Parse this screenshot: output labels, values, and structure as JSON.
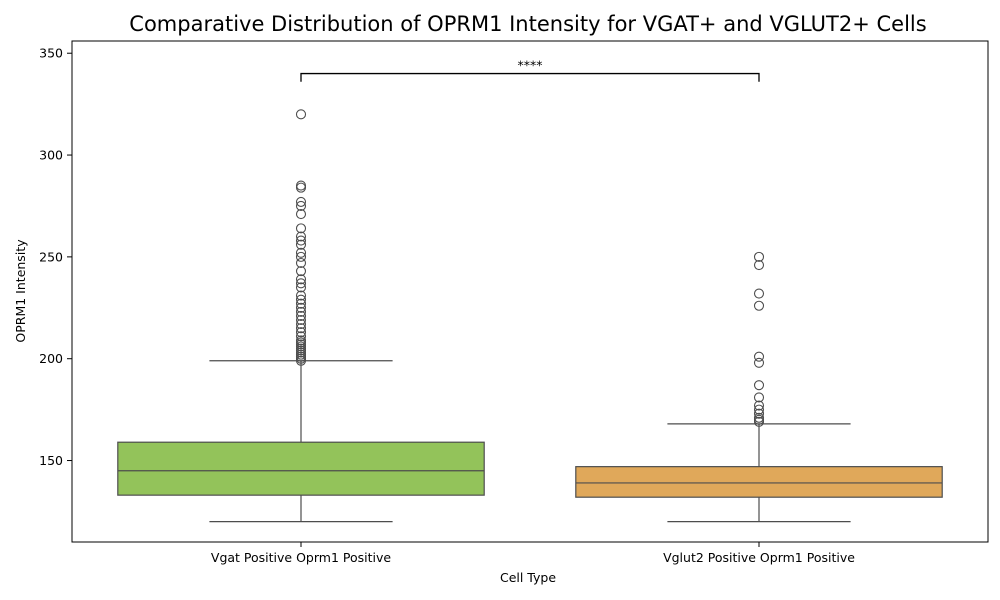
{
  "chart_data": {
    "type": "box",
    "title": "Comparative Distribution of OPRM1 Intensity for VGAT+ and VGLUT2+ Cells",
    "xlabel": "Cell Type",
    "ylabel": "OPRM1 Intensity",
    "ylim": [
      110,
      356
    ],
    "yticks": [
      150,
      200,
      250,
      300,
      350
    ],
    "grid": false,
    "categories": [
      "Vgat Positive Oprm1 Positive",
      "Vglut2 Positive Oprm1 Positive"
    ],
    "boxes": [
      {
        "category": "Vgat Positive Oprm1 Positive",
        "color": "#93c35a",
        "whisker_low": 120,
        "q1": 133,
        "median": 145,
        "q3": 159,
        "whisker_high": 199,
        "outliers": [
          199,
          200,
          201,
          202,
          203,
          204,
          205,
          206,
          207,
          208,
          209,
          211,
          213,
          215,
          217,
          219,
          221,
          223,
          225,
          227,
          229,
          231,
          235,
          237,
          239,
          243,
          247,
          250,
          252,
          256,
          258,
          260,
          264,
          271,
          275,
          277,
          284,
          285,
          320
        ]
      },
      {
        "category": "Vglut2 Positive Oprm1 Positive",
        "color": "#e0a85a",
        "whisker_low": 120,
        "q1": 132,
        "median": 139,
        "q3": 147,
        "whisker_high": 168,
        "outliers": [
          169,
          170,
          171,
          173,
          175,
          177,
          181,
          187,
          198,
          201,
          226,
          232,
          246,
          250
        ]
      }
    ],
    "significance": {
      "between": [
        "Vgat Positive Oprm1 Positive",
        "Vglut2 Positive Oprm1 Positive"
      ],
      "label": "****",
      "y_value": 340,
      "tip_value": 336
    }
  }
}
